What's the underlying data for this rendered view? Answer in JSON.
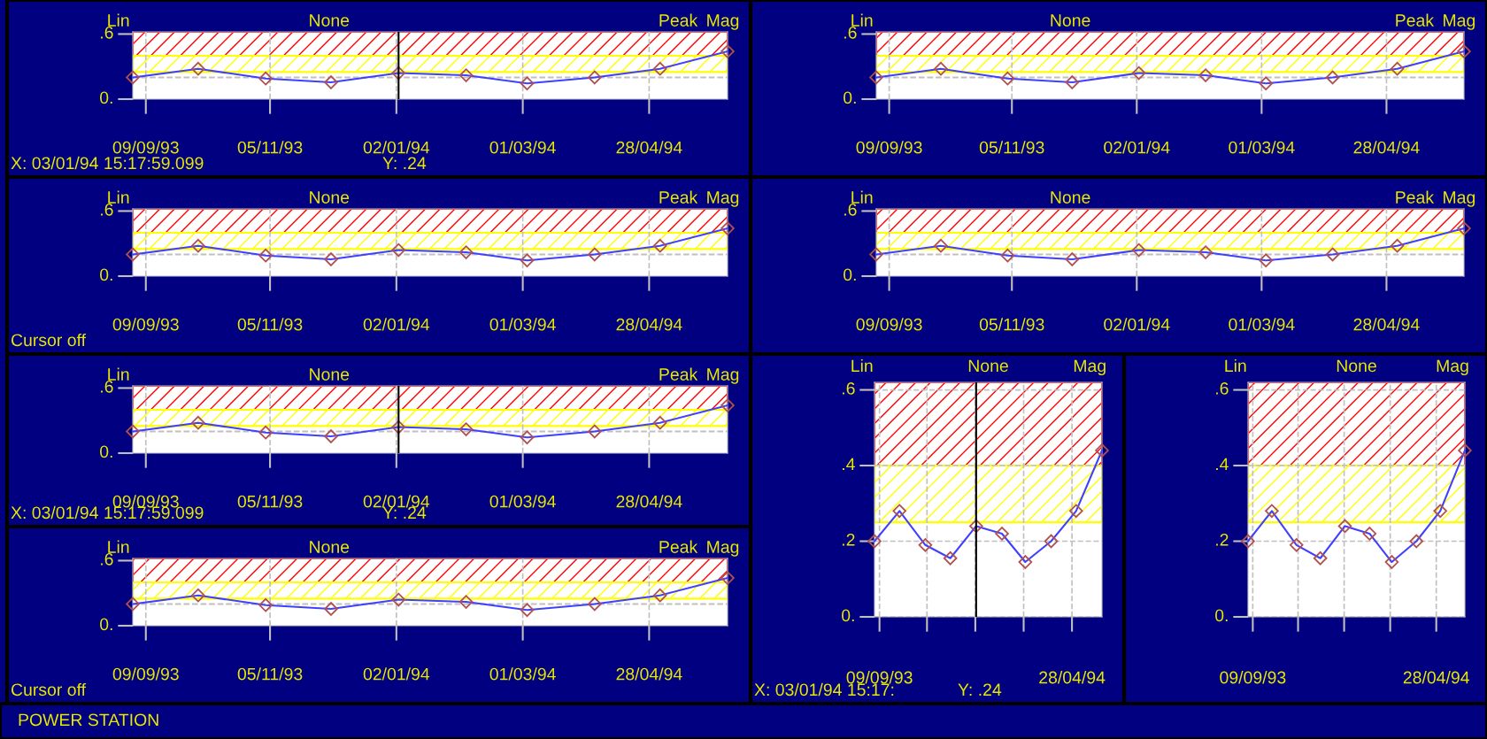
{
  "chart_data": [
    {
      "type": "line",
      "ylabel": "Lin",
      "title": "None",
      "subtitle": "Peak",
      "x": [
        "1993-09-03",
        "1993-10-03",
        "1993-11-03",
        "1993-12-03",
        "1994-01-03",
        "1994-02-03",
        "1994-03-03",
        "1994-04-03",
        "1994-05-03",
        "1994-06-03"
      ],
      "series": [
        {
          "color": "#4040ff",
          "values": [
            0.2,
            0.28,
            0.19,
            0.155,
            0.24,
            0.22,
            0.145,
            0.2,
            0.28,
            0.44
          ]
        }
      ],
      "marker": "diamond",
      "xlim": [
        "1993-09-03",
        "1994-06-03"
      ],
      "xticks": [
        {
          "value": "1993-09-09",
          "label": "09/09/93"
        },
        {
          "value": "1993-11-05",
          "label": "05/11/93"
        },
        {
          "value": "1994-01-02",
          "label": "02/01/94"
        },
        {
          "value": "1994-03-01",
          "label": "01/03/94"
        },
        {
          "value": "1994-04-28",
          "label": "28/04/94"
        }
      ],
      "ylim": [
        0,
        0.62
      ],
      "yticks": [
        {
          "value": 0.6,
          "label": ".6"
        },
        {
          "value": 0,
          "label": "0."
        }
      ],
      "grid": "x",
      "bands": [
        {
          "axis": "y",
          "from": 0.4,
          "to": 0.62,
          "color": "#ff0000"
        },
        {
          "axis": "y",
          "from": 0.25,
          "to": 0.4,
          "color": "#ffff00"
        }
      ],
      "ref_lines": [
        {
          "axis": "y",
          "value": 0.2,
          "color": "#c0c0c0",
          "line_style": "dashed"
        },
        {
          "axis": "x",
          "value": "1994-01-03",
          "color": "#000000"
        }
      ],
      "annotations": [
        "Mag",
        "X: 03/01/94 15:17:59.099",
        "Y: .24"
      ]
    },
    {
      "type": "line",
      "ylabel": "Lin",
      "title": "None",
      "subtitle": "Peak",
      "x": [
        "1993-09-03",
        "1993-10-03",
        "1993-11-03",
        "1993-12-03",
        "1994-01-03",
        "1994-02-03",
        "1994-03-03",
        "1994-04-03",
        "1994-05-03",
        "1994-06-03"
      ],
      "series": [
        {
          "color": "#4040ff",
          "values": [
            0.2,
            0.28,
            0.19,
            0.155,
            0.24,
            0.22,
            0.145,
            0.2,
            0.28,
            0.44
          ]
        }
      ],
      "marker": "diamond",
      "xlim": [
        "1993-09-03",
        "1994-06-03"
      ],
      "xticks": [
        {
          "value": "1993-09-09",
          "label": "09/09/93"
        },
        {
          "value": "1993-11-05",
          "label": "05/11/93"
        },
        {
          "value": "1994-01-02",
          "label": "02/01/94"
        },
        {
          "value": "1994-03-01",
          "label": "01/03/94"
        },
        {
          "value": "1994-04-28",
          "label": "28/04/94"
        }
      ],
      "ylim": [
        0,
        0.62
      ],
      "yticks": [
        {
          "value": 0.6,
          "label": ".6"
        },
        {
          "value": 0,
          "label": "0."
        }
      ],
      "grid": "x",
      "bands": [
        {
          "axis": "y",
          "from": 0.4,
          "to": 0.62,
          "color": "#ff0000"
        },
        {
          "axis": "y",
          "from": 0.25,
          "to": 0.4,
          "color": "#ffff00"
        }
      ],
      "ref_lines": [
        {
          "axis": "y",
          "value": 0.2,
          "color": "#c0c0c0",
          "line_style": "dashed"
        }
      ],
      "annotations": [
        "Mag",
        "Cursor off"
      ]
    },
    {
      "type": "line",
      "ylabel": "Lin",
      "title": "None",
      "subtitle": "Peak",
      "x": [
        "1993-09-03",
        "1993-10-03",
        "1993-11-03",
        "1993-12-03",
        "1994-01-03",
        "1994-02-03",
        "1994-03-03",
        "1994-04-03",
        "1994-05-03",
        "1994-06-03"
      ],
      "series": [
        {
          "color": "#4040ff",
          "values": [
            0.2,
            0.28,
            0.19,
            0.155,
            0.24,
            0.22,
            0.145,
            0.2,
            0.28,
            0.44
          ]
        }
      ],
      "marker": "diamond",
      "xlim": [
        "1993-09-03",
        "1994-06-03"
      ],
      "xticks": [
        {
          "value": "1993-09-09",
          "label": "09/09/93"
        },
        {
          "value": "1993-11-05",
          "label": "05/11/93"
        },
        {
          "value": "1994-01-02",
          "label": "02/01/94"
        },
        {
          "value": "1994-03-01",
          "label": "01/03/94"
        },
        {
          "value": "1994-04-28",
          "label": "28/04/94"
        }
      ],
      "ylim": [
        0,
        0.62
      ],
      "yticks": [
        {
          "value": 0.6,
          "label": ".6"
        },
        {
          "value": 0,
          "label": "0."
        }
      ],
      "grid": "x",
      "bands": [
        {
          "axis": "y",
          "from": 0.4,
          "to": 0.62,
          "color": "#ff0000"
        },
        {
          "axis": "y",
          "from": 0.25,
          "to": 0.4,
          "color": "#ffff00"
        }
      ],
      "ref_lines": [
        {
          "axis": "y",
          "value": 0.2,
          "color": "#c0c0c0",
          "line_style": "dashed"
        }
      ],
      "annotations": [
        "Mag"
      ]
    },
    {
      "type": "line",
      "ylabel": "Lin",
      "title": "None",
      "subtitle": "Peak",
      "x": [
        "1993-09-03",
        "1993-10-03",
        "1993-11-03",
        "1993-12-03",
        "1994-01-03",
        "1994-02-03",
        "1994-03-03",
        "1994-04-03",
        "1994-05-03",
        "1994-06-03"
      ],
      "series": [
        {
          "color": "#4040ff",
          "values": [
            0.2,
            0.28,
            0.19,
            0.155,
            0.24,
            0.22,
            0.145,
            0.2,
            0.28,
            0.44
          ]
        }
      ],
      "marker": "diamond",
      "xlim": [
        "1993-09-03",
        "1994-06-03"
      ],
      "xticks": [
        {
          "value": "1993-09-09",
          "label": "09/09/93"
        },
        {
          "value": "1993-11-05",
          "label": "05/11/93"
        },
        {
          "value": "1994-01-02",
          "label": "02/01/94"
        },
        {
          "value": "1994-03-01",
          "label": "01/03/94"
        },
        {
          "value": "1994-04-28",
          "label": "28/04/94"
        }
      ],
      "ylim": [
        0,
        0.62
      ],
      "yticks": [
        {
          "value": 0.6,
          "label": ".6"
        },
        {
          "value": 0,
          "label": "0."
        }
      ],
      "grid": "x",
      "bands": [
        {
          "axis": "y",
          "from": 0.4,
          "to": 0.62,
          "color": "#ff0000"
        },
        {
          "axis": "y",
          "from": 0.25,
          "to": 0.4,
          "color": "#ffff00"
        }
      ],
      "ref_lines": [
        {
          "axis": "y",
          "value": 0.2,
          "color": "#c0c0c0",
          "line_style": "dashed"
        }
      ],
      "annotations": [
        "Mag"
      ]
    },
    {
      "type": "line",
      "ylabel": "Lin",
      "title": "None",
      "subtitle": "Peak",
      "x": [
        "1993-09-03",
        "1993-10-03",
        "1993-11-03",
        "1993-12-03",
        "1994-01-03",
        "1994-02-03",
        "1994-03-03",
        "1994-04-03",
        "1994-05-03",
        "1994-06-03"
      ],
      "series": [
        {
          "color": "#4040ff",
          "values": [
            0.2,
            0.28,
            0.19,
            0.155,
            0.24,
            0.22,
            0.145,
            0.2,
            0.28,
            0.44
          ]
        }
      ],
      "marker": "diamond",
      "xlim": [
        "1993-09-03",
        "1994-06-03"
      ],
      "xticks": [
        {
          "value": "1993-09-09",
          "label": "09/09/93"
        },
        {
          "value": "1993-11-05",
          "label": "05/11/93"
        },
        {
          "value": "1994-01-02",
          "label": "02/01/94"
        },
        {
          "value": "1994-03-01",
          "label": "01/03/94"
        },
        {
          "value": "1994-04-28",
          "label": "28/04/94"
        }
      ],
      "ylim": [
        0,
        0.62
      ],
      "yticks": [
        {
          "value": 0.6,
          "label": ".6"
        },
        {
          "value": 0,
          "label": "0."
        }
      ],
      "grid": "x",
      "bands": [
        {
          "axis": "y",
          "from": 0.4,
          "to": 0.62,
          "color": "#ff0000"
        },
        {
          "axis": "y",
          "from": 0.25,
          "to": 0.4,
          "color": "#ffff00"
        }
      ],
      "ref_lines": [
        {
          "axis": "y",
          "value": 0.2,
          "color": "#c0c0c0",
          "line_style": "dashed"
        },
        {
          "axis": "x",
          "value": "1994-01-03",
          "color": "#000000"
        }
      ],
      "annotations": [
        "Mag",
        "X: 03/01/94 15:17:59.099",
        "Y: .24"
      ]
    },
    {
      "type": "line",
      "ylabel": "Lin",
      "title": "None",
      "subtitle": "Peak",
      "x": [
        "1993-09-03",
        "1993-10-03",
        "1993-11-03",
        "1993-12-03",
        "1994-01-03",
        "1994-02-03",
        "1994-03-03",
        "1994-04-03",
        "1994-05-03",
        "1994-06-03"
      ],
      "series": [
        {
          "color": "#4040ff",
          "values": [
            0.2,
            0.28,
            0.19,
            0.155,
            0.24,
            0.22,
            0.145,
            0.2,
            0.28,
            0.44
          ]
        }
      ],
      "marker": "diamond",
      "xlim": [
        "1993-09-03",
        "1994-06-03"
      ],
      "xticks": [
        {
          "value": "1993-09-09",
          "label": "09/09/93"
        },
        {
          "value": "1993-11-05",
          "label": "05/11/93"
        },
        {
          "value": "1994-01-02",
          "label": "02/01/94"
        },
        {
          "value": "1994-03-01",
          "label": "01/03/94"
        },
        {
          "value": "1994-04-28",
          "label": "28/04/94"
        }
      ],
      "ylim": [
        0,
        0.62
      ],
      "yticks": [
        {
          "value": 0.6,
          "label": ".6"
        },
        {
          "value": 0,
          "label": "0."
        }
      ],
      "grid": "x",
      "bands": [
        {
          "axis": "y",
          "from": 0.4,
          "to": 0.62,
          "color": "#ff0000"
        },
        {
          "axis": "y",
          "from": 0.25,
          "to": 0.4,
          "color": "#ffff00"
        }
      ],
      "ref_lines": [
        {
          "axis": "y",
          "value": 0.2,
          "color": "#c0c0c0",
          "line_style": "dashed"
        }
      ],
      "annotations": [
        "Mag",
        "Cursor off"
      ]
    },
    {
      "type": "line",
      "ylabel": "Lin",
      "title": "None",
      "x": [
        "1993-09-03",
        "1993-10-03",
        "1993-11-03",
        "1993-12-03",
        "1994-01-03",
        "1994-02-03",
        "1994-03-03",
        "1994-04-03",
        "1994-05-03",
        "1994-06-03"
      ],
      "series": [
        {
          "color": "#4040ff",
          "values": [
            0.2,
            0.28,
            0.19,
            0.155,
            0.24,
            0.22,
            0.145,
            0.2,
            0.28,
            0.44
          ]
        }
      ],
      "marker": "diamond",
      "xlim": [
        "1993-09-03",
        "1994-06-03"
      ],
      "xticks": [
        {
          "value": "1993-09-09",
          "label": "09/09/93"
        },
        {
          "value": "1993-11-05",
          "label": null
        },
        {
          "value": "1994-01-02",
          "label": null
        },
        {
          "value": "1994-03-01",
          "label": null
        },
        {
          "value": "1994-04-28",
          "label": "28/04/94"
        }
      ],
      "ylim": [
        0,
        0.62
      ],
      "yticks": [
        {
          "value": 0.6,
          "label": ".6"
        },
        {
          "value": 0.4,
          "label": ".4"
        },
        {
          "value": 0.2,
          "label": ".2"
        },
        {
          "value": 0,
          "label": "0."
        }
      ],
      "grid": true,
      "bands": [
        {
          "axis": "y",
          "from": 0.4,
          "to": 0.62,
          "color": "#ff0000"
        },
        {
          "axis": "y",
          "from": 0.25,
          "to": 0.4,
          "color": "#ffff00"
        }
      ],
      "ref_lines": [
        {
          "axis": "x",
          "value": "1994-01-03",
          "color": "#000000"
        }
      ],
      "annotations": [
        "Mag",
        "X: 03/01/94 15:17:",
        "Y: .24"
      ]
    },
    {
      "type": "line",
      "ylabel": "Lin",
      "title": "None",
      "x": [
        "1993-09-03",
        "1993-10-03",
        "1993-11-03",
        "1993-12-03",
        "1994-01-03",
        "1994-02-03",
        "1994-03-03",
        "1994-04-03",
        "1994-05-03",
        "1994-06-03"
      ],
      "series": [
        {
          "color": "#4040ff",
          "values": [
            0.2,
            0.28,
            0.19,
            0.155,
            0.24,
            0.22,
            0.145,
            0.2,
            0.28,
            0.44
          ]
        }
      ],
      "marker": "diamond",
      "xlim": [
        "1993-09-03",
        "1994-06-03"
      ],
      "xticks": [
        {
          "value": "1993-09-09",
          "label": "09/09/93"
        },
        {
          "value": "1993-11-05",
          "label": null
        },
        {
          "value": "1994-01-02",
          "label": null
        },
        {
          "value": "1994-03-01",
          "label": null
        },
        {
          "value": "1994-04-28",
          "label": "28/04/94"
        }
      ],
      "ylim": [
        0,
        0.62
      ],
      "yticks": [
        {
          "value": 0.6,
          "label": ".6"
        },
        {
          "value": 0.4,
          "label": ".4"
        },
        {
          "value": 0.2,
          "label": ".2"
        },
        {
          "value": 0,
          "label": "0."
        }
      ],
      "grid": true,
      "bands": [
        {
          "axis": "y",
          "from": 0.4,
          "to": 0.62,
          "color": "#ff0000"
        },
        {
          "axis": "y",
          "from": 0.25,
          "to": 0.4,
          "color": "#ffff00"
        }
      ],
      "annotations": [
        "Mag",
        "POWER STATION"
      ]
    }
  ]
}
